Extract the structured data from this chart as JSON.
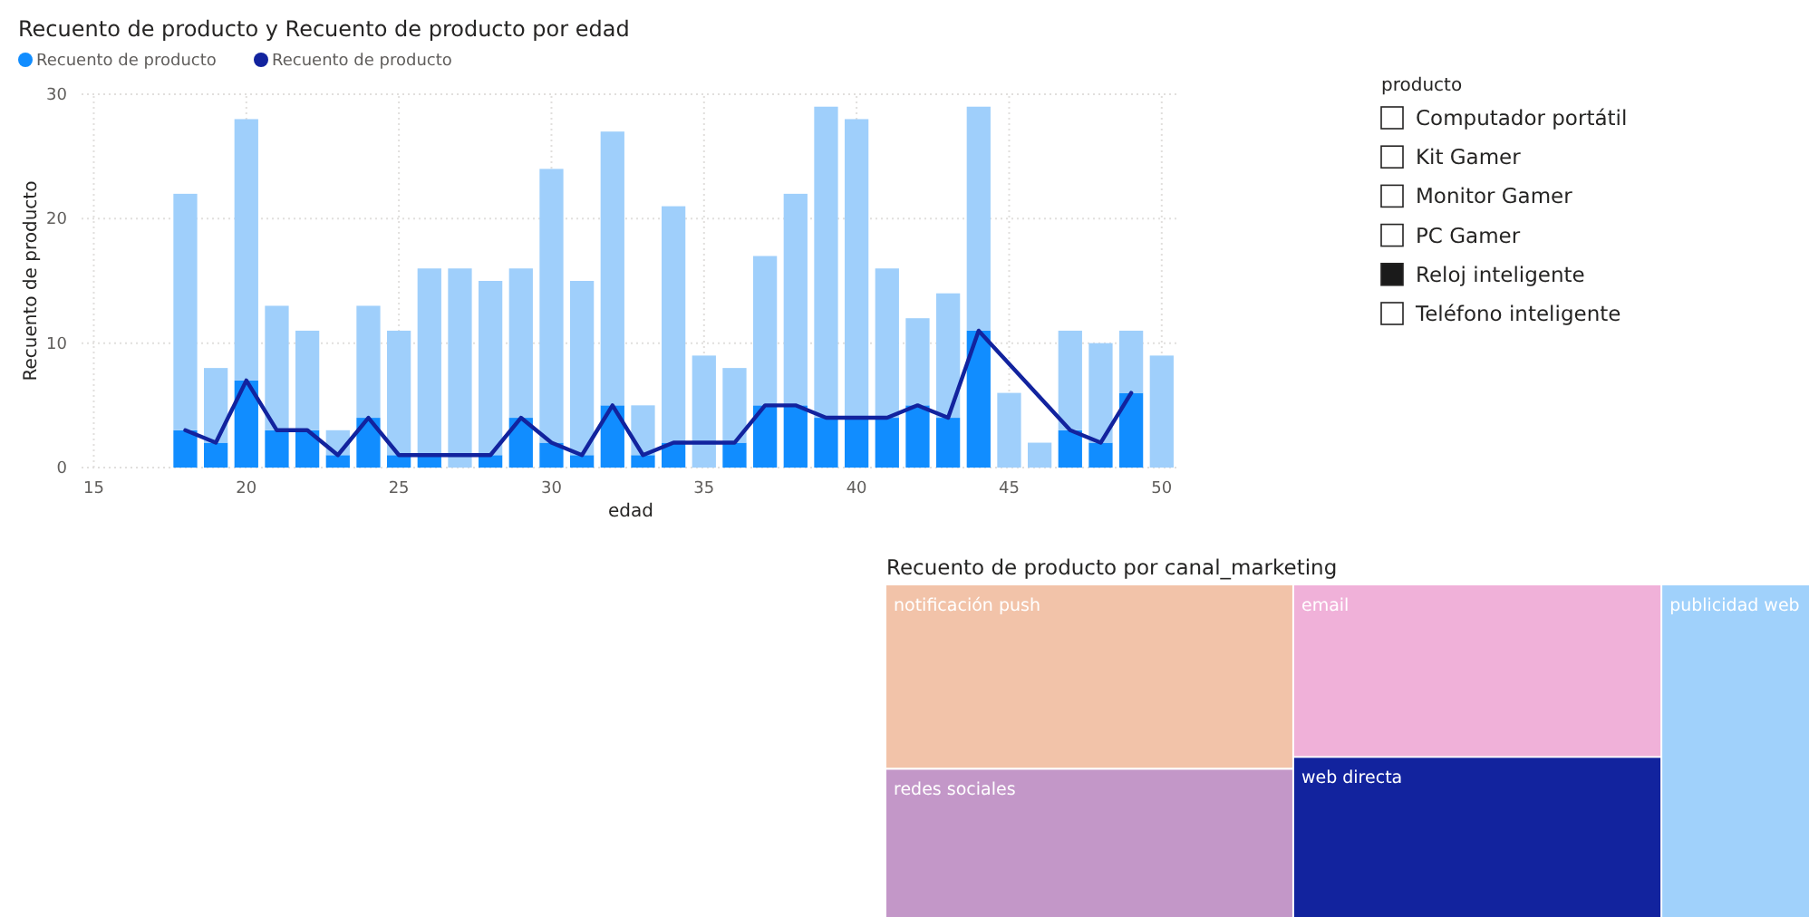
{
  "chart_data": [
    {
      "type": "bar",
      "title": "Recuento de producto y Recuento de producto por edad",
      "xlabel": "edad",
      "ylabel": "Recuento de producto",
      "x": [
        18,
        19,
        20,
        21,
        22,
        23,
        24,
        25,
        26,
        27,
        28,
        29,
        30,
        31,
        32,
        33,
        34,
        35,
        36,
        37,
        38,
        39,
        40,
        41,
        42,
        43,
        44,
        45,
        46,
        47,
        48,
        49,
        50
      ],
      "xlim": [
        14.6,
        50.6
      ],
      "xticks": [
        15,
        20,
        25,
        30,
        35,
        40,
        45,
        50
      ],
      "ylim": [
        0,
        30
      ],
      "yticks": [
        0,
        10,
        20,
        30
      ],
      "grid": true,
      "legend": "top left",
      "stacked": true,
      "series": [
        {
          "type": "bar",
          "name": "Recuento de producto",
          "color": "#118dff",
          "values": [
            3,
            2,
            7,
            3,
            3,
            1,
            4,
            1,
            1,
            null,
            1,
            4,
            2,
            1,
            5,
            1,
            2,
            null,
            2,
            5,
            5,
            4,
            4,
            4,
            5,
            4,
            11,
            null,
            null,
            3,
            2,
            6,
            null
          ]
        },
        {
          "type": "bar",
          "color": "#9fcffb",
          "values": [
            19,
            6,
            21,
            10,
            8,
            2,
            9,
            10,
            15,
            16,
            14,
            12,
            22,
            14,
            22,
            4,
            19,
            9,
            6,
            12,
            17,
            25,
            24,
            12,
            7,
            10,
            18,
            6,
            2,
            8,
            8,
            5,
            9
          ]
        },
        {
          "type": "line",
          "name": "Recuento de producto",
          "color": "#12239e",
          "x": [
            18,
            19,
            20,
            21,
            22,
            23,
            24,
            25,
            26,
            28,
            29,
            30,
            31,
            32,
            33,
            34,
            36,
            37,
            38,
            39,
            40,
            41,
            42,
            43,
            44,
            47,
            48,
            49
          ],
          "values": [
            3,
            2,
            7,
            3,
            3,
            1,
            4,
            1,
            1,
            1,
            4,
            2,
            1,
            5,
            1,
            2,
            2,
            5,
            5,
            4,
            4,
            4,
            5,
            4,
            11,
            3,
            2,
            6
          ]
        }
      ]
    },
    {
      "type": "other",
      "legend_title": "producto",
      "categories": [
        "Computador portátil",
        "Kit Gamer",
        "Monitor Gamer",
        "PC Gamer",
        "Reloj inteligente",
        "Teléfono inteligente"
      ],
      "colors": [
        "#ffffff",
        "#ffffff",
        "#ffffff",
        "#ffffff",
        "#1a1a1a",
        "#ffffff"
      ]
    },
    {
      "type": "other",
      "title": "Recuento de producto por canal_marketing",
      "categories": [
        "notificación push",
        "email",
        "publicidad web",
        "redes sociales",
        "web directa"
      ],
      "colors": [
        "#f2c3a9",
        "#f0b1d9",
        "#a0d1fb",
        "#c397c8",
        "#12239e"
      ]
    }
  ]
}
